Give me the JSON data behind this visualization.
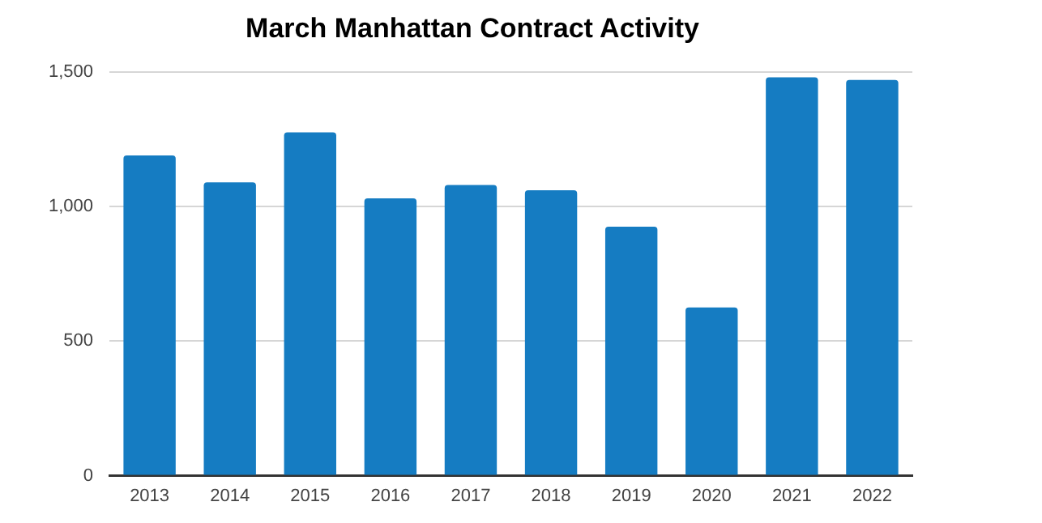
{
  "chart_data": {
    "type": "bar",
    "title": "March Manhattan Contract Activity",
    "categories": [
      "2013",
      "2014",
      "2015",
      "2016",
      "2017",
      "2018",
      "2019",
      "2020",
      "2021",
      "2022"
    ],
    "values": [
      1190,
      1090,
      1275,
      1030,
      1080,
      1060,
      925,
      625,
      1480,
      1470
    ],
    "color": "#157cc2",
    "ylim": [
      0,
      1500
    ],
    "yticks": [
      0,
      {
        "value": 500,
        "label": "500"
      },
      {
        "value": 1000,
        "label": "1,000"
      },
      {
        "value": 1500,
        "label": "1,500"
      }
    ],
    "grid": "y"
  }
}
